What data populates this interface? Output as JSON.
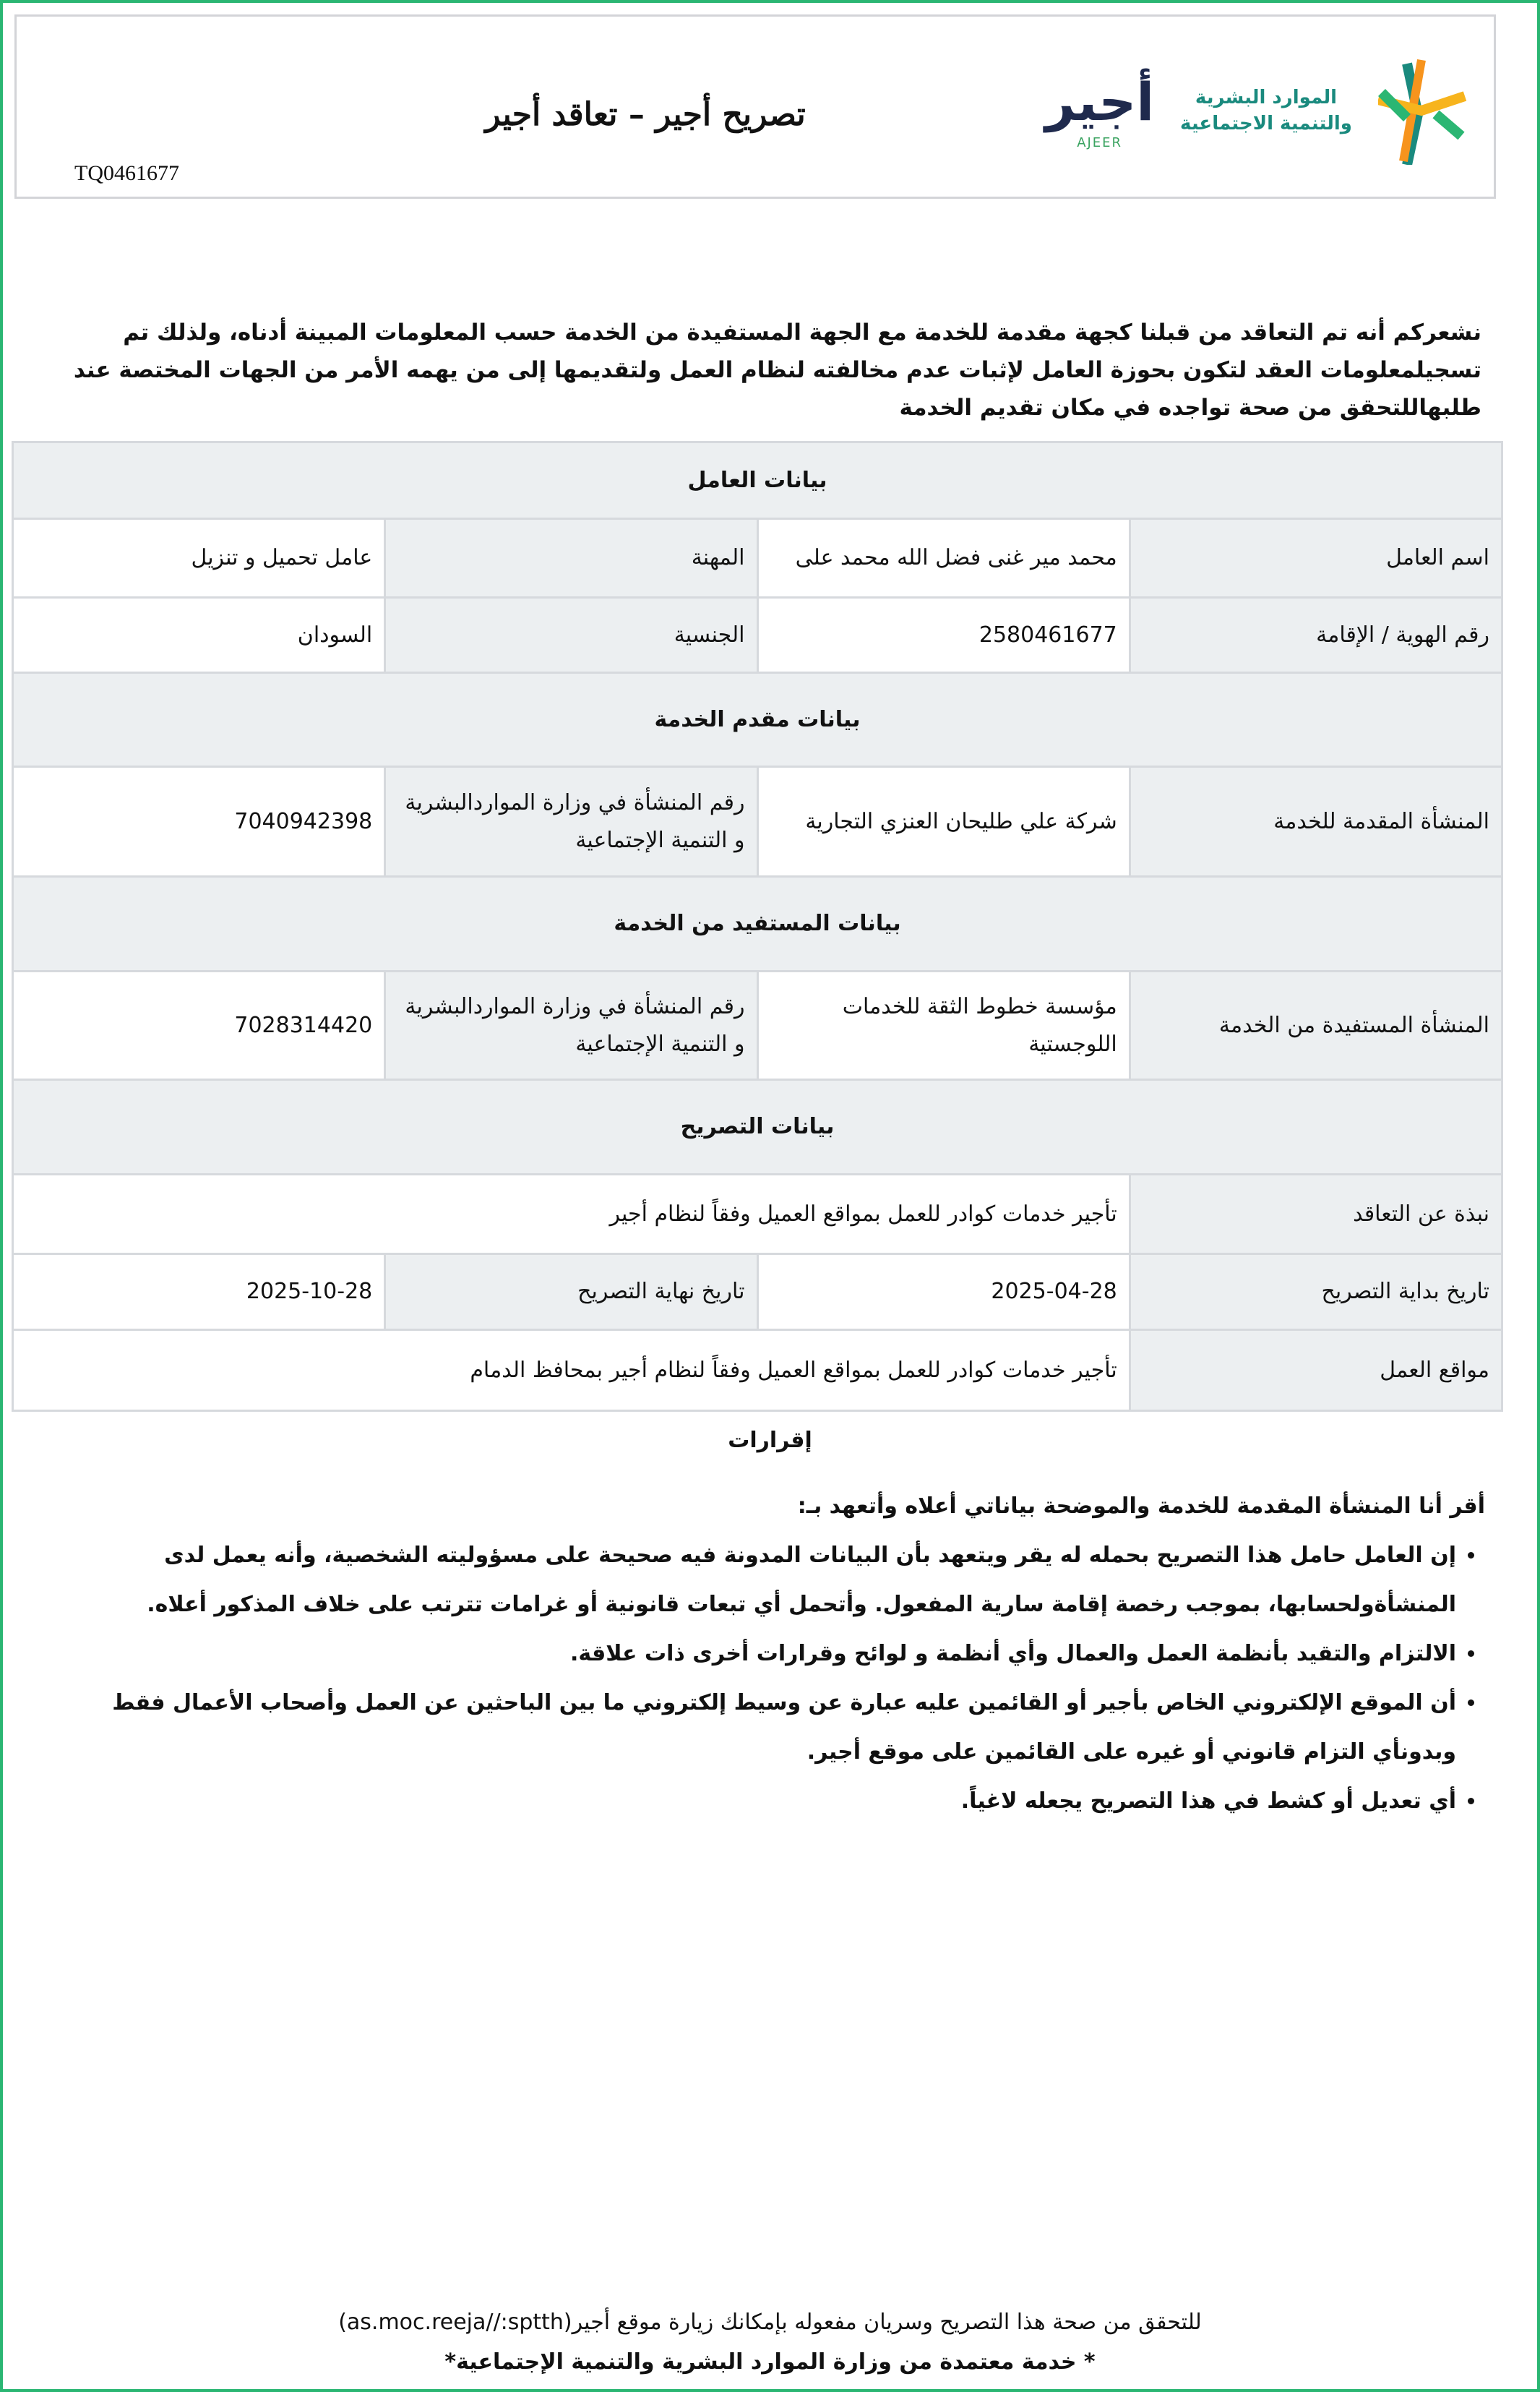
{
  "header": {
    "title": "تصريح أجير – تعاقد أجير",
    "reference": "TQ0461677",
    "logos": {
      "ministry": "الموارد البشرية والتنمية الاجتماعية",
      "ajeer_ar": "أجير",
      "ajeer_en": "AJEER"
    }
  },
  "intro": "نشعركم أنه تم التعاقد من قبلنا كجهة مقدمة للخدمة مع الجهة المستفيدة من الخدمة حسب المعلومات المبينة أدناه، ولذلك تم تسجيلمعلومات العقد لتكون بحوزة العامل لإثبات عدم مخالفته لنظام العمل ولتقديمها إلى من يهمه الأمر من الجهات المختصة عند طلبهاللتحقق من صحة تواجده في مكان تقديم الخدمة",
  "worker": {
    "section": "بيانات العامل",
    "name_label": "اسم العامل",
    "name": "محمد مير غنى فضل الله محمد على",
    "job_label": "المهنة",
    "job": "عامل تحميل و تنزيل",
    "id_label": "رقم الهوية / الإقامة",
    "id": "2580461677",
    "nationality_label": "الجنسية",
    "nationality": "السودان"
  },
  "provider": {
    "section": "بيانات مقدم الخدمة",
    "label": "المنشأة المقدمة للخدمة",
    "name": "شركة علي طليحان العنزي التجارية",
    "number_label": "رقم المنشأة في وزارة المواردالبشرية و التنمية الإجتماعية",
    "number": "7040942398"
  },
  "beneficiary": {
    "section": "بيانات المستفيد من الخدمة",
    "label": "المنشأة المستفيدة من الخدمة",
    "name": "مؤسسة خطوط الثقة للخدمات اللوجستية",
    "number_label": "رقم المنشأة في وزارة المواردالبشرية و التنمية الإجتماعية",
    "number": "7028314420"
  },
  "permit": {
    "section": "بيانات التصريح",
    "summary_label": "نبذة عن التعاقد",
    "summary": "تأجير خدمات كوادر للعمل بمواقع العميل وفقاً لنظام أجير",
    "start_label": "تاريخ بداية التصريح",
    "start": "2025-04-28",
    "end_label": "تاريخ نهاية التصريح",
    "end": "2025-10-28",
    "locations_label": "مواقع العمل",
    "locations": "تأجير خدمات كوادر للعمل بمواقع العميل وفقاً لنظام أجير بمحافظ الدمام"
  },
  "acks": {
    "title": "إقرارات",
    "intro": "أقر أنا المنشأة المقدمة للخدمة والموضحة بياناتي أعلاه وأتعهد بـ:",
    "items": [
      "إن العامل حامل هذا التصريح بحمله له يقر ويتعهد بأن البيانات المدونة فيه صحيحة على مسؤوليته الشخصية، وأنه يعمل لدى المنشأةولحسابها، بموجب رخصة إقامة سارية المفعول. وأتحمل أي تبعات قانونية أو غرامات تترتب على خلاف المذكور أعلاه.",
      "الالتزام والتقيد بأنظمة العمل والعمال وأي أنظمة و لوائح وقرارات أخرى ذات علاقة.",
      "أن الموقع الإلكتروني الخاص بأجير أو القائمين عليه عبارة عن وسيط إلكتروني ما بين الباحثين عن العمل وأصحاب الأعمال فقط وبدونأي التزام قانوني أو غيره على القائمين على موقع أجير.",
      "أي تعديل أو كشط في هذا التصريح يجعله لاغياً."
    ]
  },
  "footer": {
    "verify": "للتحقق من صحة هذا التصريح وسريان مفعوله بإمكانك زيارة موقع أجير(as.moc.reeja//:sptth)",
    "approved": "* خدمة معتمدة من وزارة الموارد البشرية والتنمية الإجتماعية*"
  },
  "colors": {
    "border": "#2bb673",
    "cell_gray": "#eceff1",
    "ajeer_navy": "#1f2a4d",
    "ajeer_green": "#3aa360",
    "ministry_teal": "#1a8a7e",
    "ministry_orange": "#f7941d"
  }
}
